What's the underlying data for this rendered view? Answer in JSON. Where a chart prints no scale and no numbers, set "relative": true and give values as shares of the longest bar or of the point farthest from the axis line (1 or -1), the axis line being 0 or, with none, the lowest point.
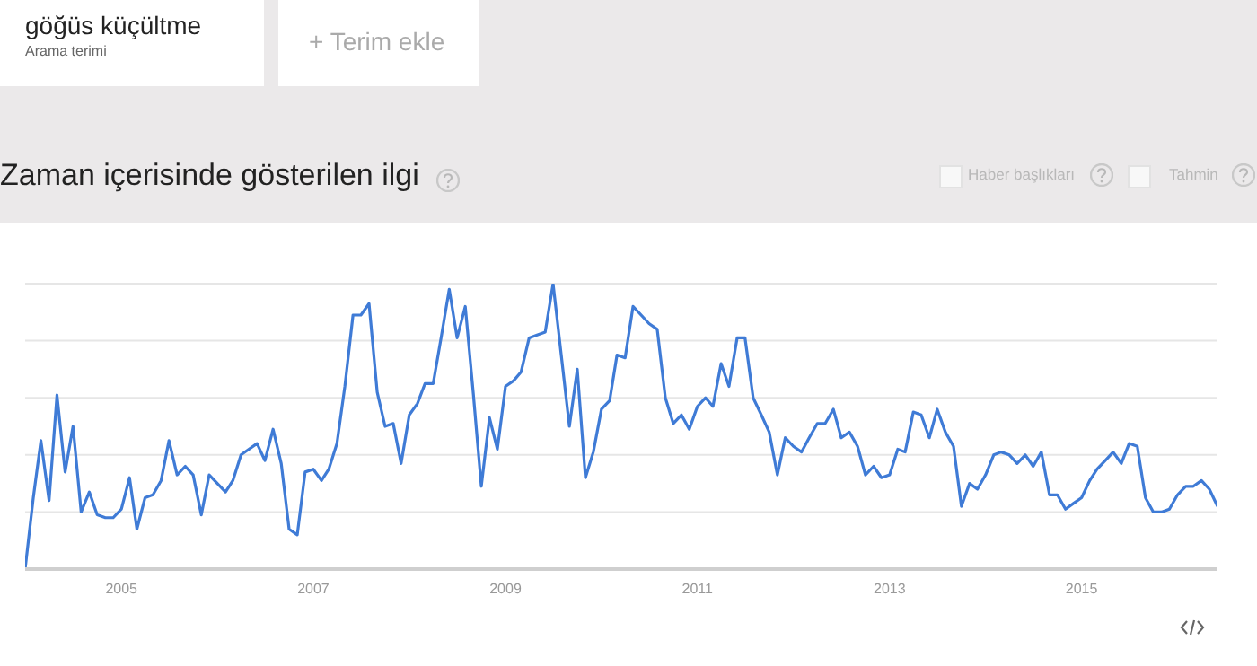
{
  "chart_data": {
    "type": "line",
    "title": "Zaman içerisinde gösterilen ilgi",
    "relative": true,
    "grid": "y",
    "annotations": [
      "göğüs küçültme",
      "Arama terimi",
      "+ Terim ekle",
      "Haber başlıkları",
      "Tahmin"
    ],
    "x": [
      "2004-01",
      "2004-02",
      "2004-03",
      "2004-04",
      "2004-05",
      "2004-06",
      "2004-07",
      "2004-08",
      "2004-09",
      "2004-10",
      "2004-11",
      "2004-12",
      "2005-01",
      "2005-02",
      "2005-03",
      "2005-04",
      "2005-05",
      "2005-06",
      "2005-07",
      "2005-08",
      "2005-09",
      "2005-10",
      "2005-11",
      "2005-12",
      "2006-01",
      "2006-02",
      "2006-03",
      "2006-04",
      "2006-05",
      "2006-06",
      "2006-07",
      "2006-08",
      "2006-09",
      "2006-10",
      "2006-11",
      "2006-12",
      "2007-01",
      "2007-02",
      "2007-03",
      "2007-04",
      "2007-05",
      "2007-06",
      "2007-07",
      "2007-08",
      "2007-09",
      "2007-10",
      "2007-11",
      "2007-12",
      "2008-01",
      "2008-02",
      "2008-03",
      "2008-04",
      "2008-05",
      "2008-06",
      "2008-07",
      "2008-08",
      "2008-09",
      "2008-10",
      "2008-11",
      "2008-12",
      "2009-01",
      "2009-02",
      "2009-03",
      "2009-04",
      "2009-05",
      "2009-06",
      "2009-07",
      "2009-08",
      "2009-09",
      "2009-10",
      "2009-11",
      "2009-12",
      "2010-01",
      "2010-02",
      "2010-03",
      "2010-04",
      "2010-05",
      "2010-06",
      "2010-07",
      "2010-08",
      "2010-09",
      "2010-10",
      "2010-11",
      "2010-12",
      "2011-01",
      "2011-02",
      "2011-03",
      "2011-04",
      "2011-05",
      "2011-06",
      "2011-07",
      "2011-08",
      "2011-09",
      "2011-10",
      "2011-11",
      "2011-12",
      "2012-01",
      "2012-02",
      "2012-03",
      "2012-04",
      "2012-05",
      "2012-06",
      "2012-07",
      "2012-08",
      "2012-09",
      "2012-10",
      "2012-11",
      "2012-12",
      "2013-01",
      "2013-02",
      "2013-03",
      "2013-04",
      "2013-05",
      "2013-06",
      "2013-07",
      "2013-08",
      "2013-09",
      "2013-10",
      "2013-11",
      "2013-12",
      "2014-01",
      "2014-02",
      "2014-03",
      "2014-04",
      "2014-05",
      "2014-06",
      "2014-07",
      "2014-08",
      "2014-09",
      "2014-10",
      "2014-11",
      "2014-12",
      "2015-01",
      "2015-02",
      "2015-03",
      "2015-04",
      "2015-05",
      "2015-06",
      "2015-07",
      "2015-08",
      "2015-09",
      "2015-10",
      "2015-11",
      "2015-12",
      "2016-01",
      "2016-02",
      "2016-03",
      "2016-04",
      "2016-05",
      "2016-06"
    ],
    "xlim": [
      "2004-01",
      "2016-06"
    ],
    "xticks": [
      "2005",
      "2007",
      "2009",
      "2011",
      "2013",
      "2015"
    ],
    "series": [
      {
        "color": "#3f7bd6",
        "values": [
          0,
          0.25,
          0.45,
          0.24,
          0.61,
          0.34,
          0.5,
          0.2,
          0.27,
          0.19,
          0.18,
          0.18,
          0.21,
          0.32,
          0.14,
          0.25,
          0.26,
          0.31,
          0.45,
          0.33,
          0.36,
          0.33,
          0.19,
          0.33,
          0.3,
          0.27,
          0.31,
          0.4,
          0.42,
          0.44,
          0.38,
          0.49,
          0.37,
          0.14,
          0.12,
          0.34,
          0.35,
          0.31,
          0.35,
          0.44,
          0.64,
          0.89,
          0.89,
          0.93,
          0.62,
          0.5,
          0.51,
          0.37,
          0.54,
          0.58,
          0.65,
          0.65,
          0.81,
          0.98,
          0.81,
          0.92,
          0.61,
          0.29,
          0.53,
          0.42,
          0.64,
          0.66,
          0.69,
          0.81,
          0.82,
          0.83,
          1,
          0.75,
          0.5,
          0.7,
          0.32,
          0.41,
          0.56,
          0.59,
          0.75,
          0.74,
          0.92,
          0.89,
          0.86,
          0.84,
          0.6,
          0.51,
          0.54,
          0.49,
          0.57,
          0.6,
          0.57,
          0.72,
          0.64,
          0.81,
          0.81,
          0.6,
          0.54,
          0.48,
          0.33,
          0.46,
          0.43,
          0.41,
          0.46,
          0.51,
          0.51,
          0.56,
          0.46,
          0.48,
          0.43,
          0.33,
          0.36,
          0.32,
          0.33,
          0.42,
          0.41,
          0.55,
          0.54,
          0.46,
          0.56,
          0.48,
          0.43,
          0.22,
          0.3,
          0.28,
          0.33,
          0.4,
          0.41,
          0.4,
          0.37,
          0.4,
          0.36,
          0.41,
          0.26,
          0.26,
          0.21,
          0.23,
          0.25,
          0.31,
          0.35,
          0.38,
          0.41,
          0.37,
          0.44,
          0.43,
          0.25,
          0.2,
          0.2,
          0.21,
          0.26,
          0.29,
          0.29,
          0.31,
          0.28,
          0.22
        ]
      }
    ]
  }
}
